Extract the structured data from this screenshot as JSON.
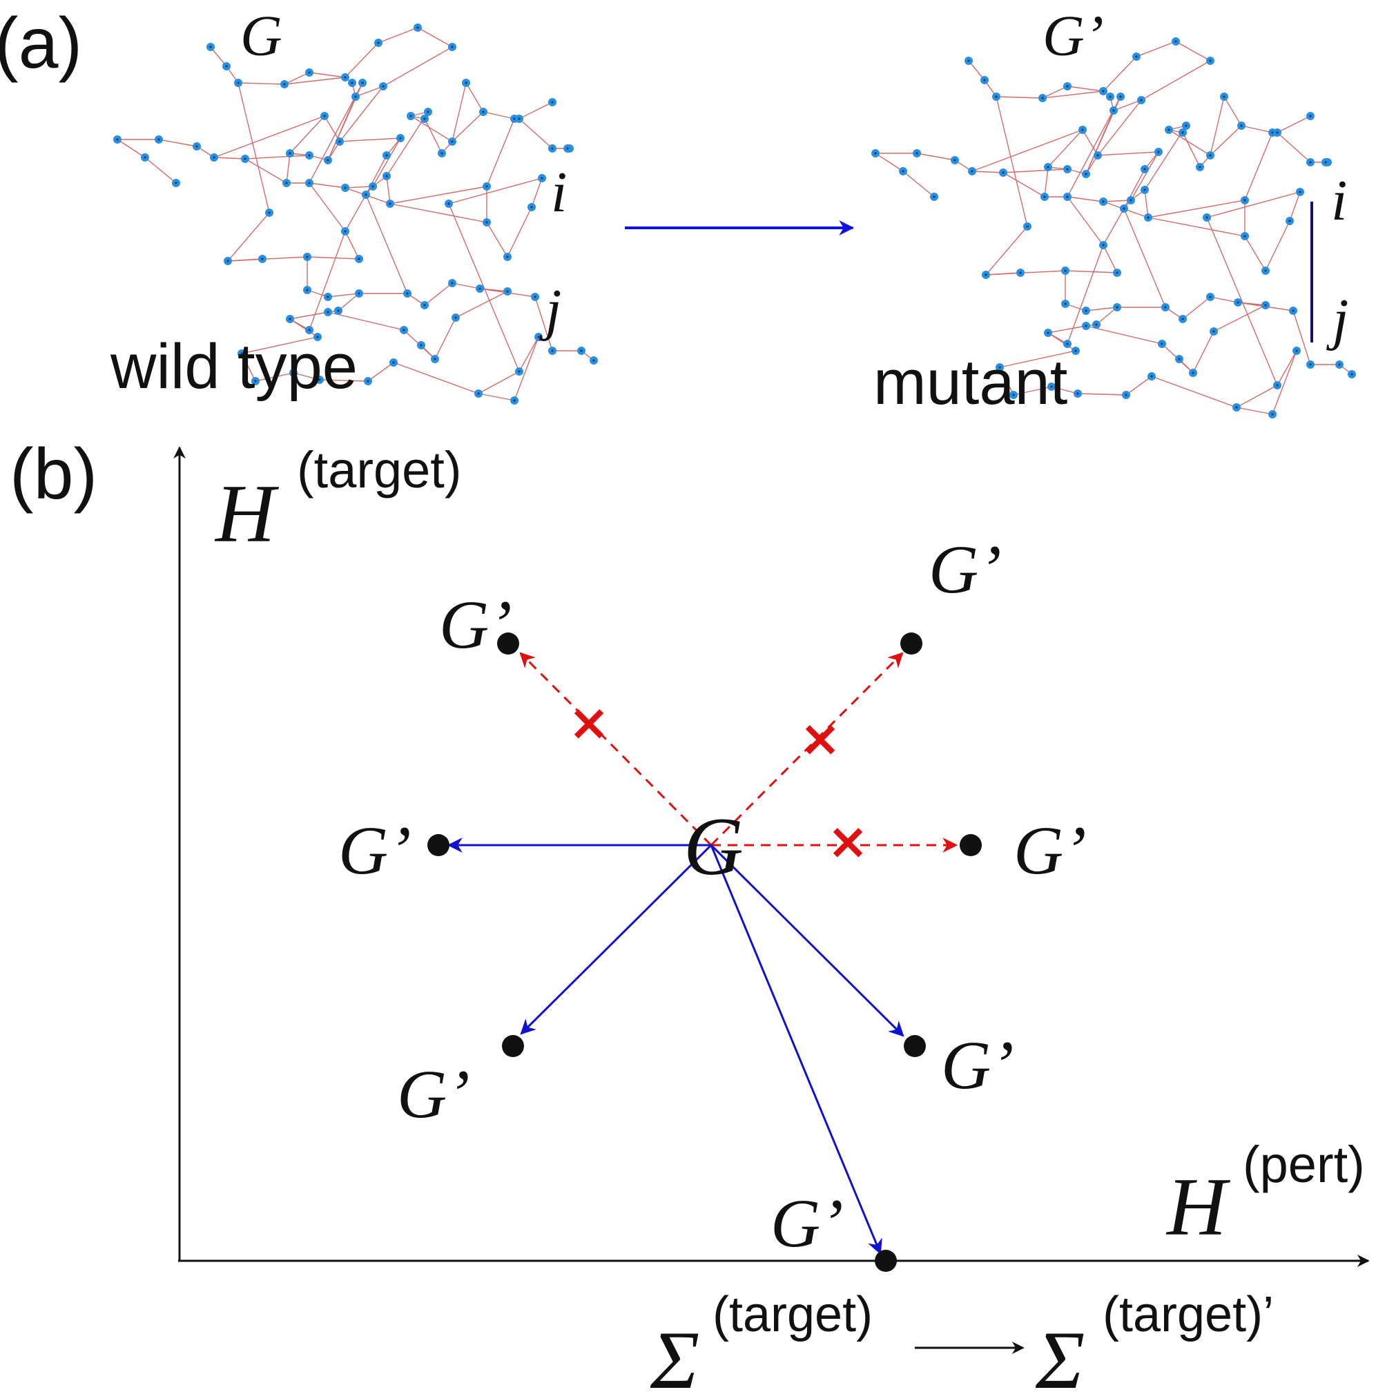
{
  "panel_a": {
    "label": "(a)",
    "wild_type": {
      "graph_label": "G",
      "caption": "wild type",
      "node_i": "i",
      "node_j": "j"
    },
    "arrow_color": "#1010e0",
    "mutant": {
      "graph_label": "G’",
      "caption": "mutant",
      "node_i": "i",
      "node_j": "j",
      "added_edge_color": "#101080"
    },
    "node_color": "#2b8fe0",
    "edge_color": "#d46a6a"
  },
  "panel_b": {
    "label": "(b)",
    "y_axis": {
      "symbol": "H",
      "superscript": "(target)"
    },
    "x_axis": {
      "symbol": "H",
      "superscript": "(pert)"
    },
    "center_label": "G",
    "mutant_label": "G’",
    "blocked_color": "#e01010",
    "allowed_color": "#1010d0",
    "cross_mark": "×",
    "bottom_caption": {
      "from_symbol": "Σ",
      "from_superscript": "(target)",
      "to_symbol": "Σ",
      "to_superscript": "(target)’"
    }
  }
}
